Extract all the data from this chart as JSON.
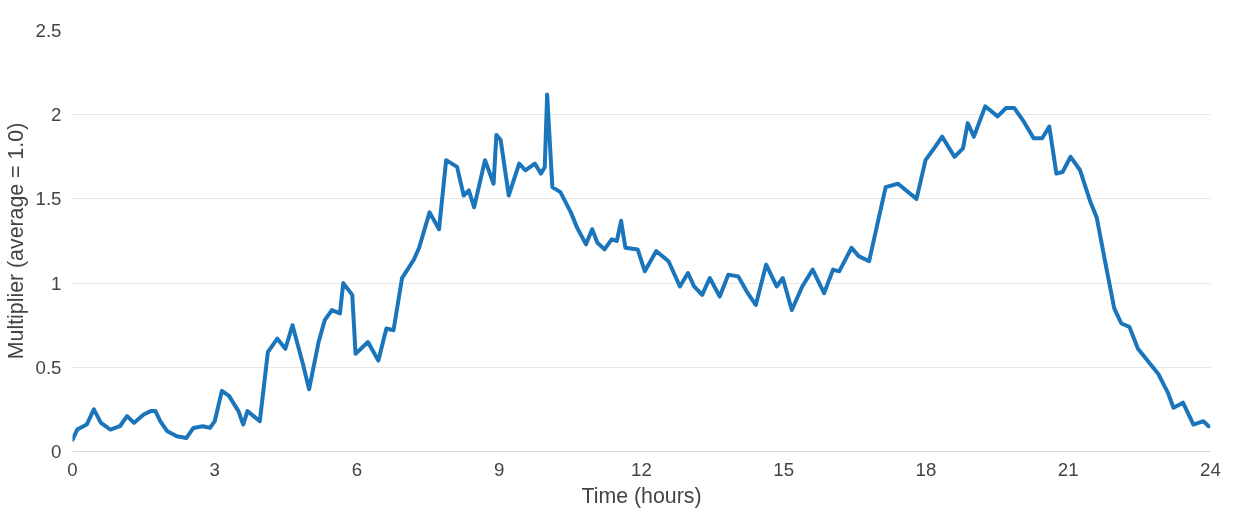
{
  "chart_data": {
    "type": "line",
    "xlabel": "Time (hours)",
    "ylabel": "Multiplier (average = 1.0)",
    "xlim": [
      0,
      24
    ],
    "xticks": [
      0,
      3,
      6,
      9,
      12,
      15,
      18,
      21,
      24
    ],
    "ylim": [
      0,
      2.5
    ],
    "yticks": [
      0,
      0.5,
      1,
      1.5,
      2,
      2.5
    ],
    "grid": "y",
    "marker": "none",
    "line_style": "solid",
    "series": [
      {
        "color": "#1a75bb",
        "x": [
          0.0,
          0.1,
          0.3,
          0.45,
          0.6,
          0.8,
          1.0,
          1.15,
          1.3,
          1.5,
          1.65,
          1.75,
          1.85,
          2.0,
          2.2,
          2.4,
          2.55,
          2.75,
          2.9,
          3.0,
          3.15,
          3.3,
          3.5,
          3.6,
          3.69,
          3.95,
          4.12,
          4.32,
          4.49,
          4.64,
          4.86,
          4.99,
          5.19,
          5.32,
          5.47,
          5.64,
          5.71,
          5.9,
          5.97,
          6.23,
          6.45,
          6.62,
          6.77,
          6.95,
          7.2,
          7.31,
          7.53,
          7.73,
          7.88,
          8.11,
          8.25,
          8.36,
          8.47,
          8.7,
          8.88,
          8.94,
          9.03,
          9.2,
          9.42,
          9.55,
          9.75,
          9.88,
          9.96,
          10.01,
          10.12,
          10.29,
          10.51,
          10.64,
          10.83,
          10.96,
          11.07,
          11.22,
          11.37,
          11.48,
          11.57,
          11.66,
          11.92,
          12.07,
          12.31,
          12.57,
          12.81,
          12.98,
          13.11,
          13.28,
          13.44,
          13.65,
          13.83,
          14.04,
          14.22,
          14.41,
          14.63,
          14.85,
          14.98,
          15.17,
          15.39,
          15.61,
          15.85,
          16.04,
          16.17,
          16.43,
          16.58,
          16.8,
          17.15,
          17.41,
          17.8,
          17.99,
          18.17,
          18.34,
          18.6,
          18.78,
          18.88,
          19.01,
          19.25,
          19.51,
          19.69,
          19.86,
          20.06,
          20.27,
          20.45,
          20.6,
          20.75,
          20.88,
          21.05,
          21.25,
          21.47,
          21.6,
          21.79,
          21.97,
          22.12,
          22.29,
          22.47,
          22.73,
          22.9,
          23.1,
          23.22,
          23.42,
          23.64,
          23.85,
          23.96
        ],
        "values": [
          0.07,
          0.13,
          0.16,
          0.25,
          0.17,
          0.13,
          0.15,
          0.21,
          0.17,
          0.22,
          0.24,
          0.24,
          0.18,
          0.12,
          0.09,
          0.08,
          0.14,
          0.15,
          0.14,
          0.18,
          0.36,
          0.33,
          0.24,
          0.16,
          0.24,
          0.18,
          0.59,
          0.67,
          0.61,
          0.75,
          0.52,
          0.37,
          0.65,
          0.78,
          0.84,
          0.82,
          1.0,
          0.93,
          0.58,
          0.65,
          0.54,
          0.73,
          0.72,
          1.03,
          1.14,
          1.21,
          1.42,
          1.32,
          1.73,
          1.69,
          1.52,
          1.55,
          1.45,
          1.73,
          1.59,
          1.88,
          1.85,
          1.52,
          1.71,
          1.67,
          1.71,
          1.65,
          1.69,
          2.12,
          1.57,
          1.54,
          1.42,
          1.33,
          1.23,
          1.32,
          1.24,
          1.2,
          1.26,
          1.25,
          1.37,
          1.21,
          1.2,
          1.07,
          1.19,
          1.13,
          0.98,
          1.06,
          0.98,
          0.93,
          1.03,
          0.92,
          1.05,
          1.04,
          0.95,
          0.87,
          1.11,
          0.98,
          1.03,
          0.84,
          0.98,
          1.08,
          0.94,
          1.08,
          1.07,
          1.21,
          1.16,
          1.13,
          1.57,
          1.59,
          1.5,
          1.73,
          1.8,
          1.87,
          1.75,
          1.8,
          1.95,
          1.87,
          2.05,
          1.99,
          2.04,
          2.04,
          1.96,
          1.86,
          1.86,
          1.93,
          1.65,
          1.66,
          1.75,
          1.67,
          1.48,
          1.39,
          1.11,
          0.85,
          0.76,
          0.74,
          0.61,
          0.52,
          0.46,
          0.35,
          0.26,
          0.29,
          0.16,
          0.18,
          0.15
        ]
      }
    ]
  }
}
